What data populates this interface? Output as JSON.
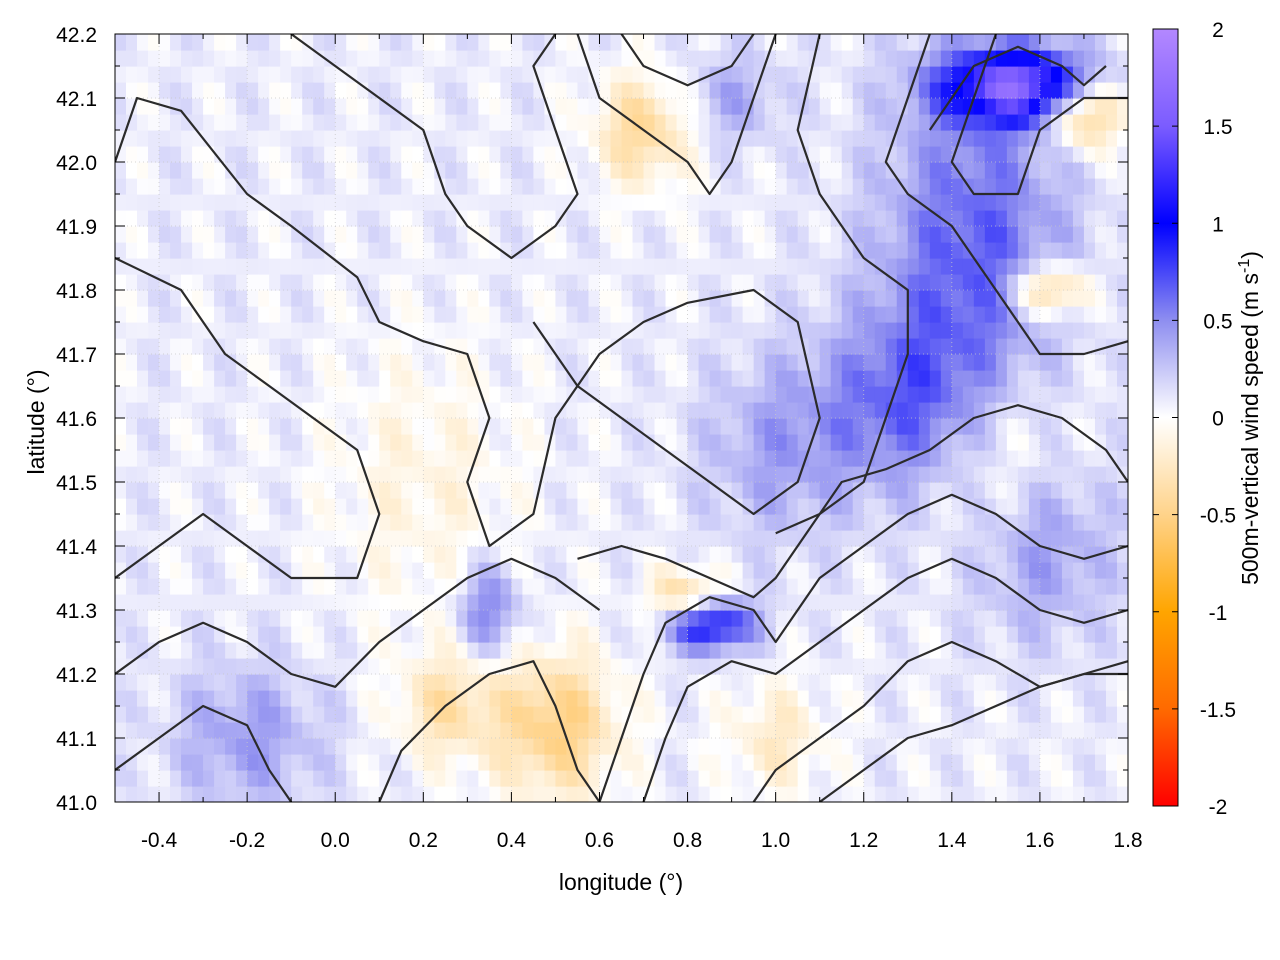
{
  "chart_data": {
    "type": "heatmap",
    "xlabel": "longitude (°)",
    "ylabel": "latitude (°)",
    "colorbar_label_main": "500m-vertical wind speed (m s",
    "colorbar_label_sup": "-1",
    "colorbar_label_end": ")",
    "xlim": [
      -0.5,
      1.8
    ],
    "ylim": [
      41.0,
      42.2
    ],
    "x_ticks": [
      "-0.4",
      "-0.2",
      "0.0",
      "0.2",
      "0.4",
      "0.6",
      "0.8",
      "1.0",
      "1.2",
      "1.4",
      "1.6",
      "1.8"
    ],
    "x_tick_values": [
      -0.4,
      -0.2,
      0.0,
      0.2,
      0.4,
      0.6,
      0.8,
      1.0,
      1.2,
      1.4,
      1.6,
      1.8
    ],
    "y_ticks": [
      "41.0",
      "41.1",
      "41.2",
      "41.3",
      "41.4",
      "41.5",
      "41.6",
      "41.7",
      "41.8",
      "41.9",
      "42.0",
      "42.1",
      "42.2"
    ],
    "y_tick_values": [
      41.0,
      41.1,
      41.2,
      41.3,
      41.4,
      41.5,
      41.6,
      41.7,
      41.8,
      41.9,
      42.0,
      42.1,
      42.2
    ],
    "color_range": [
      -2,
      2
    ],
    "colorbar_ticks": [
      "2",
      "1.5",
      "1",
      "0.5",
      "0",
      "-0.5",
      "-1",
      "-1.5",
      "-2"
    ],
    "colorbar_tick_values": [
      2,
      1.5,
      1,
      0.5,
      0,
      -0.5,
      -1,
      -1.5,
      -2
    ],
    "colorbar_stops": [
      {
        "value": 2,
        "color": "#b388ff"
      },
      {
        "value": 1.5,
        "color": "#7b5cff"
      },
      {
        "value": 1,
        "color": "#0000ff"
      },
      {
        "value": 0.5,
        "color": "#8e8ef0"
      },
      {
        "value": 0,
        "color": "#ffffff"
      },
      {
        "value": -0.5,
        "color": "#ffd38a"
      },
      {
        "value": -1,
        "color": "#ffa500"
      },
      {
        "value": -1.5,
        "color": "#ff6a00"
      },
      {
        "value": -2,
        "color": "#ff0000"
      }
    ],
    "grid": true,
    "field_features": [
      {
        "lon": 1.55,
        "lat": 42.12,
        "w": 1.4,
        "slon": 0.12,
        "slat": 0.04
      },
      {
        "lon": 1.7,
        "lat": 42.08,
        "w": -0.8,
        "slon": 0.06,
        "slat": 0.04
      },
      {
        "lon": 1.45,
        "lat": 41.85,
        "w": 0.6,
        "slon": 0.15,
        "slat": 0.2
      },
      {
        "lon": 1.62,
        "lat": 41.8,
        "w": -0.7,
        "slon": 0.06,
        "slat": 0.03
      },
      {
        "lon": 1.3,
        "lat": 41.62,
        "w": 0.5,
        "slon": 0.15,
        "slat": 0.1
      },
      {
        "lon": 1.5,
        "lat": 41.55,
        "w": -0.4,
        "slon": 0.12,
        "slat": 0.12
      },
      {
        "lon": 1.6,
        "lat": 41.4,
        "w": 0.4,
        "slon": 0.12,
        "slat": 0.1
      },
      {
        "lon": 0.85,
        "lat": 41.28,
        "w": 1.0,
        "slon": 0.07,
        "slat": 0.03
      },
      {
        "lon": 0.8,
        "lat": 41.32,
        "w": -0.6,
        "slon": 0.06,
        "slat": 0.03
      },
      {
        "lon": 0.5,
        "lat": 41.12,
        "w": -0.6,
        "slon": 0.1,
        "slat": 0.08
      },
      {
        "lon": 0.25,
        "lat": 41.15,
        "w": -0.4,
        "slon": 0.08,
        "slat": 0.06
      },
      {
        "lon": 0.35,
        "lat": 41.3,
        "w": 0.5,
        "slon": 0.05,
        "slat": 0.05
      },
      {
        "lon": 0.7,
        "lat": 42.05,
        "w": -0.5,
        "slon": 0.08,
        "slat": 0.06
      },
      {
        "lon": 0.9,
        "lat": 42.1,
        "w": 0.3,
        "slon": 0.08,
        "slat": 0.05
      },
      {
        "lon": -0.2,
        "lat": 41.1,
        "w": 0.35,
        "slon": 0.12,
        "slat": 0.08
      },
      {
        "lon": 0.2,
        "lat": 41.5,
        "w": -0.2,
        "slon": 0.15,
        "slat": 0.15
      },
      {
        "lon": 1.0,
        "lat": 41.55,
        "w": 0.3,
        "slon": 0.12,
        "slat": 0.1
      },
      {
        "lon": 1.0,
        "lat": 41.1,
        "w": -0.3,
        "slon": 0.08,
        "slat": 0.06
      }
    ],
    "contours": [
      [
        [
          -0.5,
          42.0
        ],
        [
          -0.45,
          42.1
        ],
        [
          -0.35,
          42.08
        ],
        [
          -0.2,
          41.95
        ],
        [
          -0.1,
          41.9
        ],
        [
          0.05,
          41.82
        ],
        [
          0.1,
          41.75
        ],
        [
          0.2,
          41.72
        ],
        [
          0.3,
          41.7
        ],
        [
          0.35,
          41.6
        ],
        [
          0.3,
          41.5
        ],
        [
          0.35,
          41.4
        ],
        [
          0.45,
          41.45
        ],
        [
          0.5,
          41.6
        ],
        [
          0.6,
          41.7
        ],
        [
          0.7,
          41.75
        ],
        [
          0.8,
          41.78
        ],
        [
          0.95,
          41.8
        ],
        [
          1.05,
          41.75
        ],
        [
          1.1,
          41.6
        ],
        [
          1.05,
          41.5
        ],
        [
          0.95,
          41.45
        ],
        [
          0.85,
          41.5
        ],
        [
          0.75,
          41.55
        ],
        [
          0.65,
          41.6
        ],
        [
          0.55,
          41.65
        ],
        [
          0.45,
          41.75
        ]
      ],
      [
        [
          -0.5,
          41.85
        ],
        [
          -0.35,
          41.8
        ],
        [
          -0.25,
          41.7
        ],
        [
          -0.15,
          41.65
        ],
        [
          -0.05,
          41.6
        ],
        [
          0.05,
          41.55
        ],
        [
          0.1,
          41.45
        ],
        [
          0.05,
          41.35
        ],
        [
          -0.1,
          41.35
        ],
        [
          -0.2,
          41.4
        ],
        [
          -0.3,
          41.45
        ],
        [
          -0.4,
          41.4
        ],
        [
          -0.5,
          41.35
        ]
      ],
      [
        [
          -0.1,
          42.2
        ],
        [
          0.0,
          42.15
        ],
        [
          0.1,
          42.1
        ],
        [
          0.2,
          42.05
        ],
        [
          0.25,
          41.95
        ],
        [
          0.3,
          41.9
        ],
        [
          0.4,
          41.85
        ],
        [
          0.5,
          41.9
        ],
        [
          0.55,
          41.95
        ],
        [
          0.5,
          42.05
        ],
        [
          0.45,
          42.15
        ],
        [
          0.5,
          42.2
        ]
      ],
      [
        [
          0.55,
          42.2
        ],
        [
          0.6,
          42.1
        ],
        [
          0.7,
          42.05
        ],
        [
          0.8,
          42.0
        ],
        [
          0.85,
          41.95
        ],
        [
          0.9,
          42.0
        ],
        [
          0.95,
          42.1
        ],
        [
          1.0,
          42.2
        ]
      ],
      [
        [
          0.65,
          42.2
        ],
        [
          0.7,
          42.15
        ],
        [
          0.8,
          42.12
        ],
        [
          0.9,
          42.15
        ],
        [
          0.95,
          42.2
        ]
      ],
      [
        [
          1.1,
          42.2
        ],
        [
          1.05,
          42.05
        ],
        [
          1.1,
          41.95
        ],
        [
          1.2,
          41.85
        ],
        [
          1.3,
          41.8
        ],
        [
          1.3,
          41.7
        ],
        [
          1.25,
          41.6
        ],
        [
          1.2,
          41.5
        ],
        [
          1.1,
          41.45
        ],
        [
          1.0,
          41.42
        ]
      ],
      [
        [
          1.35,
          42.2
        ],
        [
          1.3,
          42.1
        ],
        [
          1.25,
          42.0
        ],
        [
          1.3,
          41.95
        ],
        [
          1.4,
          41.9
        ],
        [
          1.45,
          41.85
        ],
        [
          1.5,
          41.8
        ],
        [
          1.55,
          41.75
        ],
        [
          1.6,
          41.7
        ],
        [
          1.7,
          41.7
        ],
        [
          1.8,
          41.72
        ]
      ],
      [
        [
          1.5,
          42.2
        ],
        [
          1.45,
          42.1
        ],
        [
          1.4,
          42.0
        ],
        [
          1.45,
          41.95
        ],
        [
          1.55,
          41.95
        ],
        [
          1.6,
          42.05
        ],
        [
          1.7,
          42.1
        ],
        [
          1.8,
          42.1
        ]
      ],
      [
        [
          -0.5,
          41.2
        ],
        [
          -0.4,
          41.25
        ],
        [
          -0.3,
          41.28
        ],
        [
          -0.2,
          41.25
        ],
        [
          -0.1,
          41.2
        ],
        [
          0.0,
          41.18
        ],
        [
          0.1,
          41.25
        ],
        [
          0.2,
          41.3
        ],
        [
          0.3,
          41.35
        ],
        [
          0.4,
          41.38
        ],
        [
          0.5,
          41.35
        ],
        [
          0.6,
          41.3
        ]
      ],
      [
        [
          -0.5,
          41.05
        ],
        [
          -0.4,
          41.1
        ],
        [
          -0.3,
          41.15
        ],
        [
          -0.2,
          41.12
        ],
        [
          -0.15,
          41.05
        ],
        [
          -0.1,
          41.0
        ]
      ],
      [
        [
          0.1,
          41.0
        ],
        [
          0.15,
          41.08
        ],
        [
          0.25,
          41.15
        ],
        [
          0.35,
          41.2
        ],
        [
          0.45,
          41.22
        ],
        [
          0.5,
          41.15
        ],
        [
          0.55,
          41.05
        ],
        [
          0.6,
          41.0
        ]
      ],
      [
        [
          0.6,
          41.0
        ],
        [
          0.65,
          41.1
        ],
        [
          0.7,
          41.2
        ],
        [
          0.75,
          41.28
        ],
        [
          0.85,
          41.32
        ],
        [
          0.95,
          41.3
        ],
        [
          1.0,
          41.25
        ],
        [
          1.05,
          41.3
        ],
        [
          1.1,
          41.35
        ],
        [
          1.2,
          41.4
        ],
        [
          1.3,
          41.45
        ],
        [
          1.4,
          41.48
        ],
        [
          1.5,
          41.45
        ],
        [
          1.6,
          41.4
        ],
        [
          1.7,
          41.38
        ],
        [
          1.8,
          41.4
        ]
      ],
      [
        [
          0.7,
          41.0
        ],
        [
          0.75,
          41.1
        ],
        [
          0.8,
          41.18
        ],
        [
          0.9,
          41.22
        ],
        [
          1.0,
          41.2
        ],
        [
          1.1,
          41.25
        ],
        [
          1.2,
          41.3
        ],
        [
          1.3,
          41.35
        ],
        [
          1.4,
          41.38
        ],
        [
          1.5,
          41.35
        ],
        [
          1.6,
          41.3
        ],
        [
          1.7,
          41.28
        ],
        [
          1.8,
          41.3
        ]
      ],
      [
        [
          0.95,
          41.0
        ],
        [
          1.0,
          41.05
        ],
        [
          1.1,
          41.1
        ],
        [
          1.2,
          41.15
        ],
        [
          1.3,
          41.22
        ],
        [
          1.4,
          41.25
        ],
        [
          1.5,
          41.22
        ],
        [
          1.6,
          41.18
        ],
        [
          1.7,
          41.2
        ],
        [
          1.8,
          41.22
        ]
      ],
      [
        [
          1.1,
          41.0
        ],
        [
          1.2,
          41.05
        ],
        [
          1.3,
          41.1
        ],
        [
          1.4,
          41.12
        ],
        [
          1.5,
          41.15
        ],
        [
          1.6,
          41.18
        ],
        [
          1.7,
          41.2
        ],
        [
          1.8,
          41.2
        ]
      ],
      [
        [
          0.55,
          41.38
        ],
        [
          0.65,
          41.4
        ],
        [
          0.75,
          41.38
        ],
        [
          0.85,
          41.35
        ],
        [
          0.95,
          41.32
        ],
        [
          1.0,
          41.35
        ],
        [
          1.05,
          41.4
        ],
        [
          1.1,
          41.45
        ],
        [
          1.15,
          41.5
        ],
        [
          1.25,
          41.52
        ],
        [
          1.35,
          41.55
        ],
        [
          1.45,
          41.6
        ],
        [
          1.55,
          41.62
        ],
        [
          1.65,
          41.6
        ],
        [
          1.75,
          41.55
        ],
        [
          1.8,
          41.5
        ]
      ],
      [
        [
          1.35,
          42.05
        ],
        [
          1.4,
          42.1
        ],
        [
          1.45,
          42.15
        ],
        [
          1.55,
          42.18
        ],
        [
          1.65,
          42.15
        ],
        [
          1.7,
          42.12
        ],
        [
          1.75,
          42.15
        ]
      ]
    ]
  }
}
